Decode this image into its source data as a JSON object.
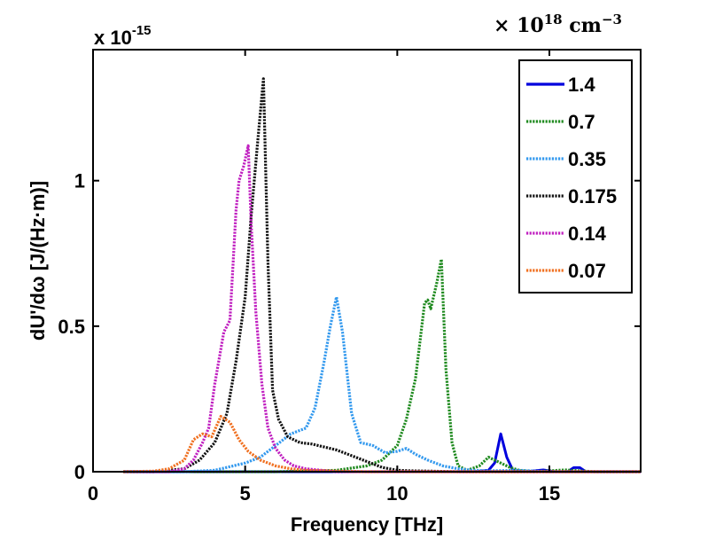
{
  "chart_data": {
    "type": "line",
    "xlabel": "Frequency [THz]",
    "ylabel": "dU'/dω [J/(Hz·m)]",
    "xlim": [
      0,
      18
    ],
    "ylim": [
      0,
      1.45
    ],
    "xticks": [
      0,
      5,
      10,
      15
    ],
    "xtick_labels": [
      "0",
      "5",
      "10",
      "15"
    ],
    "yticks": [
      0,
      0.5,
      1
    ],
    "ytick_labels": [
      "0",
      "0.5",
      "1"
    ],
    "y_scale_base": "x 10",
    "y_scale_exp": "-15",
    "legend_units_prefix": "× 10",
    "legend_units_exp1": "18",
    "legend_units_mid": " cm",
    "legend_units_exp2": "−3",
    "legend_position": "top-right",
    "grid": false,
    "series": [
      {
        "name": "1.4",
        "color": "#0000dd",
        "style": "solid",
        "x": [
          1.0,
          6.0,
          10.0,
          12.5,
          13.0,
          13.2,
          13.4,
          13.6,
          13.8,
          14.2,
          14.8,
          15.2,
          15.6,
          15.8,
          16.0,
          16.2,
          16.6,
          18.0
        ],
        "y": [
          0,
          0,
          0,
          0,
          0.005,
          0.03,
          0.13,
          0.05,
          0.005,
          0,
          0.006,
          0,
          0,
          0.014,
          0.014,
          0,
          0,
          0
        ]
      },
      {
        "name": "0.7",
        "color": "#1f8a1f",
        "style": "dotted",
        "x": [
          1.0,
          6.0,
          8.0,
          9.0,
          9.5,
          10.0,
          10.3,
          10.6,
          10.9,
          11.0,
          11.1,
          11.3,
          11.45,
          11.6,
          11.8,
          12.0,
          12.3,
          12.7,
          13.0,
          13.3,
          13.7,
          14.0,
          14.5,
          15.5,
          16.5,
          18.0
        ],
        "y": [
          0,
          0,
          0.005,
          0.02,
          0.04,
          0.09,
          0.18,
          0.32,
          0.58,
          0.59,
          0.56,
          0.65,
          0.73,
          0.35,
          0.1,
          0.02,
          0.005,
          0.02,
          0.05,
          0.035,
          0.015,
          0.005,
          0,
          0.006,
          0,
          0
        ]
      },
      {
        "name": "0.35",
        "color": "#3399ee",
        "style": "dotted",
        "x": [
          1.0,
          3.0,
          4.0,
          5.0,
          5.5,
          6.0,
          6.5,
          7.0,
          7.3,
          7.6,
          7.8,
          8.0,
          8.2,
          8.5,
          8.8,
          9.2,
          9.6,
          10.0,
          10.3,
          10.6,
          11.0,
          11.5,
          12.0,
          12.5,
          13.0,
          14.0,
          15.0,
          16.0,
          18.0
        ],
        "y": [
          0,
          0,
          0.005,
          0.03,
          0.05,
          0.09,
          0.13,
          0.15,
          0.22,
          0.38,
          0.5,
          0.6,
          0.48,
          0.2,
          0.1,
          0.09,
          0.065,
          0.07,
          0.08,
          0.06,
          0.04,
          0.02,
          0.01,
          0.005,
          0.003,
          0.005,
          0,
          0,
          0
        ]
      },
      {
        "name": "0.175",
        "color": "#111111",
        "style": "dotted",
        "x": [
          1.0,
          2.0,
          3.0,
          3.5,
          4.0,
          4.4,
          4.7,
          5.0,
          5.2,
          5.4,
          5.6,
          5.75,
          5.9,
          6.1,
          6.4,
          6.8,
          7.2,
          7.6,
          8.0,
          8.5,
          9.0,
          9.5,
          10.0,
          10.5,
          11.0,
          12.0,
          13.0,
          18.0
        ],
        "y": [
          0,
          0,
          0.01,
          0.04,
          0.1,
          0.2,
          0.38,
          0.6,
          0.88,
          1.12,
          1.35,
          0.72,
          0.28,
          0.18,
          0.12,
          0.1,
          0.095,
          0.085,
          0.075,
          0.055,
          0.035,
          0.015,
          0.005,
          0.003,
          0.002,
          0,
          0,
          0
        ]
      },
      {
        "name": "0.14",
        "color": "#c020c0",
        "style": "dotted",
        "x": [
          1.0,
          2.5,
          3.0,
          3.3,
          3.6,
          3.8,
          4.0,
          4.3,
          4.5,
          4.7,
          4.8,
          4.95,
          5.1,
          5.2,
          5.35,
          5.55,
          5.75,
          6.0,
          6.3,
          6.6,
          7.0,
          7.5,
          8.0,
          8.5,
          9.0,
          9.5,
          10.0,
          18.0
        ],
        "y": [
          0,
          0,
          0.01,
          0.04,
          0.1,
          0.15,
          0.3,
          0.48,
          0.52,
          0.9,
          1.0,
          1.05,
          1.12,
          0.85,
          0.55,
          0.3,
          0.15,
          0.08,
          0.04,
          0.02,
          0.01,
          0.005,
          0,
          0,
          0,
          0,
          0,
          0
        ]
      },
      {
        "name": "0.07",
        "color": "#f07020",
        "style": "dotted",
        "x": [
          1.0,
          2.0,
          2.5,
          3.0,
          3.3,
          3.6,
          3.9,
          4.2,
          4.5,
          4.8,
          5.1,
          5.5,
          6.0,
          6.5,
          7.0,
          8.0,
          9.0,
          10.0,
          18.0
        ],
        "y": [
          0,
          0.002,
          0.01,
          0.04,
          0.11,
          0.13,
          0.12,
          0.19,
          0.17,
          0.11,
          0.07,
          0.04,
          0.02,
          0.01,
          0.005,
          0.002,
          0,
          0,
          0
        ]
      }
    ]
  }
}
